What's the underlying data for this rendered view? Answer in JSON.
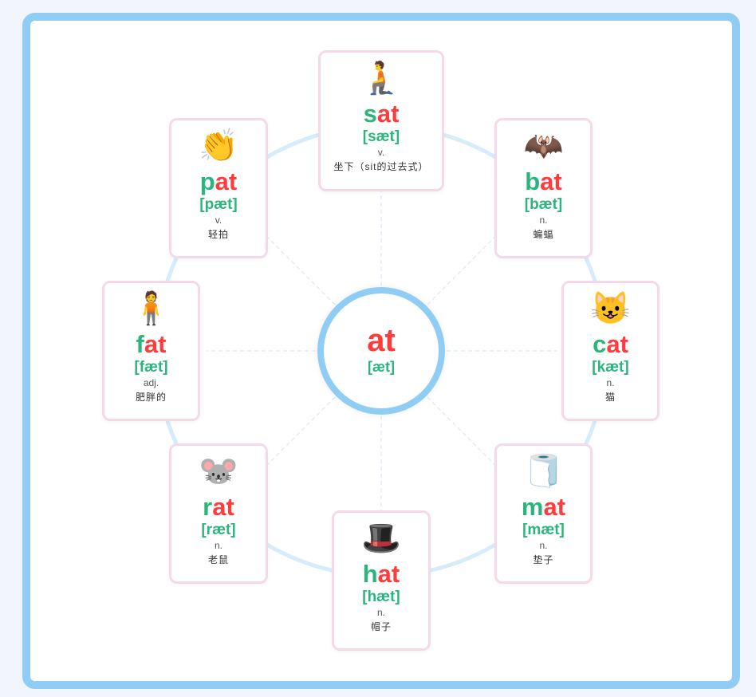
{
  "center": {
    "rime": "at",
    "ipa": "[æt]"
  },
  "colors": {
    "onset": "#2bb57c",
    "rime": "#ff3b3b",
    "frame": "#90cdf4",
    "card_border": "#f5d9e8"
  },
  "words": [
    {
      "onset": "s",
      "rime": "at",
      "ipa": "[sæt]",
      "pos": "v.",
      "meaning": "坐下（sit的过去式）",
      "icon": "kneeling-person-icon",
      "emoji": "🧎"
    },
    {
      "onset": "b",
      "rime": "at",
      "ipa": "[bæt]",
      "pos": "n.",
      "meaning": "蝙蝠",
      "icon": "bat-icon",
      "emoji": "🦇"
    },
    {
      "onset": "c",
      "rime": "at",
      "ipa": "[kæt]",
      "pos": "n.",
      "meaning": "猫",
      "icon": "cat-face-icon",
      "emoji": "😺"
    },
    {
      "onset": "m",
      "rime": "at",
      "ipa": "[mæt]",
      "pos": "n.",
      "meaning": "垫子",
      "icon": "toilet-roll-icon",
      "emoji": "🧻"
    },
    {
      "onset": "h",
      "rime": "at",
      "ipa": "[hæt]",
      "pos": "n.",
      "meaning": "帽子",
      "icon": "top-hat-icon",
      "emoji": "🎩"
    },
    {
      "onset": "r",
      "rime": "at",
      "ipa": "[ræt]",
      "pos": "n.",
      "meaning": "老鼠",
      "icon": "mouse-face-icon",
      "emoji": "🐭"
    },
    {
      "onset": "f",
      "rime": "at",
      "ipa": "[fæt]",
      "pos": "adj.",
      "meaning": "肥胖的",
      "icon": "standing-person-icon",
      "emoji": "🧍"
    },
    {
      "onset": "p",
      "rime": "at",
      "ipa": "[pæt]",
      "pos": "v.",
      "meaning": "轻拍",
      "icon": "clapping-hands-icon",
      "emoji": "👏"
    }
  ]
}
